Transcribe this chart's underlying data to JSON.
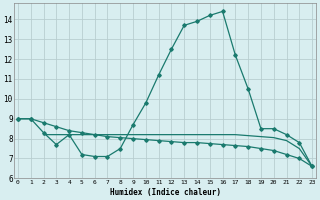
{
  "xlabel": "Humidex (Indice chaleur)",
  "line1_x": [
    0,
    1,
    2,
    3,
    4,
    5,
    6,
    7,
    8,
    9,
    10,
    11,
    12,
    13,
    14,
    15,
    16,
    17,
    18,
    19,
    20,
    21,
    22,
    23
  ],
  "line1_y": [
    9.0,
    9.0,
    8.3,
    7.7,
    8.2,
    7.2,
    7.1,
    7.1,
    7.5,
    8.7,
    9.8,
    11.2,
    12.5,
    13.7,
    13.9,
    14.2,
    14.4,
    12.2,
    10.5,
    8.5,
    8.5,
    8.2,
    7.8,
    6.6
  ],
  "line2_x": [
    0,
    1,
    2,
    3,
    4,
    5,
    6,
    7,
    8,
    9,
    10,
    11,
    12,
    13,
    14,
    15,
    16,
    17,
    18,
    19,
    20,
    21,
    22,
    23
  ],
  "line2_y": [
    9.0,
    9.0,
    8.8,
    8.6,
    8.4,
    8.3,
    8.2,
    8.1,
    8.05,
    8.0,
    7.95,
    7.9,
    7.85,
    7.8,
    7.8,
    7.75,
    7.7,
    7.65,
    7.6,
    7.5,
    7.4,
    7.2,
    7.0,
    6.6
  ],
  "line3_x": [
    2,
    3,
    4,
    5,
    6,
    7,
    8,
    9,
    10,
    11,
    12,
    13,
    14,
    15,
    16,
    17,
    18,
    19,
    20,
    21,
    22,
    23
  ],
  "line3_y": [
    8.2,
    8.2,
    8.2,
    8.2,
    8.2,
    8.2,
    8.2,
    8.2,
    8.2,
    8.2,
    8.2,
    8.2,
    8.2,
    8.2,
    8.2,
    8.2,
    8.15,
    8.1,
    8.05,
    7.9,
    7.5,
    6.6
  ],
  "line_color": "#1a7a6e",
  "bg_color": "#d8eef0",
  "grid_color": "#c0d8da",
  "ylim": [
    6,
    14.8
  ],
  "xlim": [
    -0.3,
    23.3
  ],
  "yticks": [
    6,
    7,
    8,
    9,
    10,
    11,
    12,
    13,
    14
  ],
  "xticks": [
    0,
    1,
    2,
    3,
    4,
    5,
    6,
    7,
    8,
    9,
    10,
    11,
    12,
    13,
    14,
    15,
    16,
    17,
    18,
    19,
    20,
    21,
    22,
    23
  ],
  "xtick_labels": [
    "0",
    "1",
    "2",
    "3",
    "4",
    "5",
    "6",
    "7",
    "8",
    "9",
    "10",
    "11",
    "12",
    "13",
    "14",
    "15",
    "16",
    "17",
    "18",
    "19",
    "20",
    "21",
    "22",
    "23"
  ]
}
